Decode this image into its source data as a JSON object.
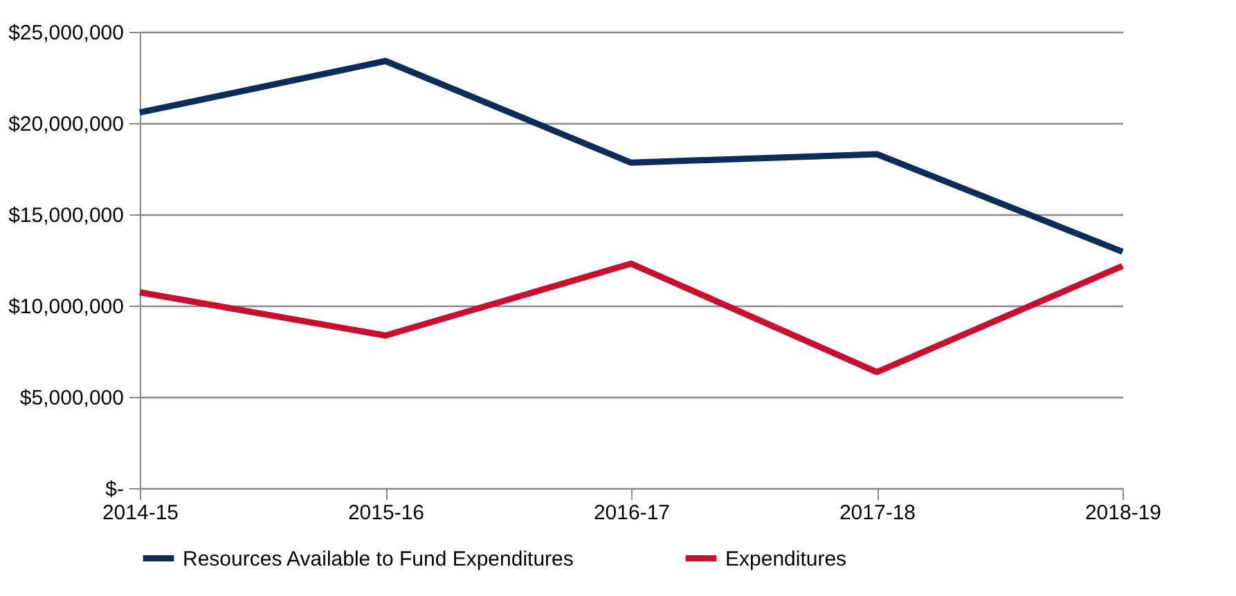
{
  "chart_data": {
    "type": "line",
    "categories": [
      "2014-15",
      "2015-16",
      "2016-17",
      "2017-18",
      "2018-19"
    ],
    "series": [
      {
        "name": "Resources Available to Fund Expenditures",
        "color": "#0b2d57",
        "values": [
          20580000,
          23400000,
          17830000,
          18300000,
          12950000
        ]
      },
      {
        "name": "Expenditures",
        "color": "#c8102e",
        "values": [
          10730000,
          8360000,
          12300000,
          6360000,
          12170000
        ]
      }
    ],
    "ylim": [
      0,
      25000000
    ],
    "yticks": [
      {
        "value": 0,
        "label": "$-"
      },
      {
        "value": 5000000,
        "label": "$5,000,000"
      },
      {
        "value": 10000000,
        "label": "$10,000,000"
      },
      {
        "value": 15000000,
        "label": "$15,000,000"
      },
      {
        "value": 20000000,
        "label": "$20,000,000"
      },
      {
        "value": 25000000,
        "label": "$25,000,000"
      }
    ],
    "grid": "y",
    "legend": "bottom",
    "marker": "none",
    "line_style": "solid"
  }
}
